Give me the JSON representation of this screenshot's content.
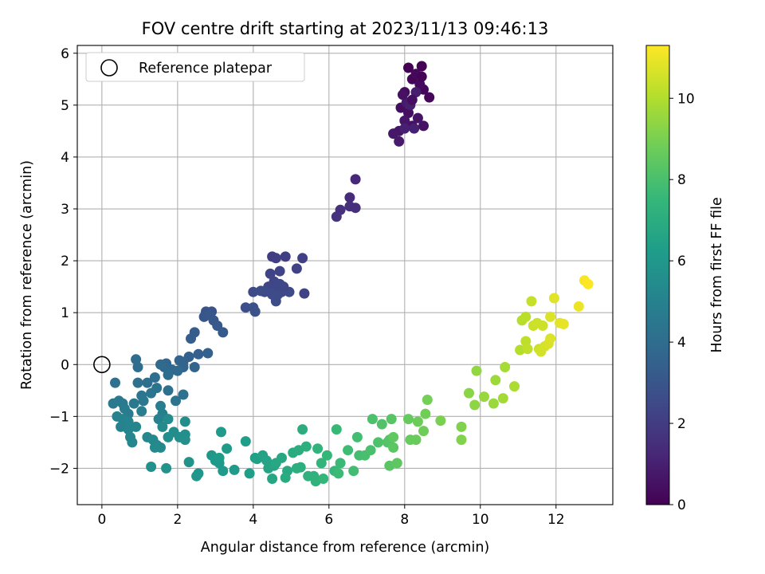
{
  "chart_data": {
    "type": "scatter",
    "title": "FOV centre drift starting at 2023/11/13 09:46:13",
    "xlabel": "Angular distance from reference (arcmin)",
    "ylabel": "Rotation from reference (arcmin)",
    "xlim": [
      -0.65,
      13.5
    ],
    "ylim": [
      -2.7,
      6.15
    ],
    "xticks": [
      0,
      2,
      4,
      6,
      8,
      10,
      12
    ],
    "yticks": [
      -2,
      -1,
      0,
      1,
      2,
      3,
      4,
      5,
      6
    ],
    "grid": true,
    "legend": {
      "position": "top-left",
      "entries": [
        "Reference platepar"
      ]
    },
    "reference_point": {
      "x": 0,
      "y": 0,
      "label": "Reference platepar"
    },
    "colorbar": {
      "label": "Hours from first FF file",
      "colormap": "viridis",
      "range": [
        0,
        11.3
      ],
      "ticks": [
        0,
        2,
        4,
        6,
        8,
        10
      ]
    },
    "series": [
      {
        "points": [
          [
            8.1,
            5.72
          ],
          [
            8.45,
            5.75
          ],
          [
            8.2,
            5.5
          ],
          [
            8.5,
            5.3
          ],
          [
            8.65,
            5.15
          ],
          [
            8.3,
            5.6
          ],
          [
            8.4,
            5.4
          ],
          [
            8.0,
            5.25
          ],
          [
            7.9,
            4.95
          ],
          [
            8.1,
            4.85
          ],
          [
            8.2,
            4.6
          ],
          [
            8.5,
            4.6
          ],
          [
            8.35,
            4.75
          ],
          [
            8.0,
            4.7
          ],
          [
            7.85,
            4.5
          ],
          [
            7.7,
            4.45
          ],
          [
            7.85,
            4.3
          ],
          [
            8.05,
            5.05
          ],
          [
            8.3,
            5.25
          ],
          [
            8.15,
            5.0
          ],
          [
            8.0,
            4.55
          ],
          [
            8.25,
            4.55
          ],
          [
            8.45,
            5.55
          ],
          [
            8.2,
            5.1
          ],
          [
            7.95,
            5.2
          ]
        ],
        "hours": [
          0.0,
          0.05,
          0.1,
          0.15,
          0.2,
          0.25,
          0.3,
          0.35,
          0.4,
          0.45,
          0.5,
          0.55,
          0.6,
          0.65,
          0.7,
          0.75,
          0.8,
          0.85,
          0.9,
          0.95,
          1.0,
          1.02,
          0.12,
          0.42,
          0.5
        ]
      },
      {
        "points": [
          [
            6.7,
            3.57
          ],
          [
            6.55,
            3.22
          ],
          [
            6.7,
            3.02
          ],
          [
            6.55,
            3.05
          ],
          [
            6.3,
            2.98
          ],
          [
            6.2,
            2.85
          ],
          [
            4.5,
            2.08
          ],
          [
            4.6,
            2.05
          ],
          [
            4.85,
            2.08
          ],
          [
            5.3,
            2.05
          ],
          [
            5.15,
            1.85
          ],
          [
            4.7,
            1.8
          ],
          [
            4.45,
            1.75
          ],
          [
            4.55,
            1.6
          ],
          [
            4.4,
            1.5
          ],
          [
            4.6,
            1.45
          ],
          [
            4.75,
            1.4
          ],
          [
            4.95,
            1.4
          ],
          [
            4.2,
            1.42
          ],
          [
            4.0,
            1.4
          ],
          [
            4.7,
            1.55
          ],
          [
            4.65,
            1.35
          ],
          [
            4.6,
            1.22
          ],
          [
            5.35,
            1.37
          ],
          [
            3.8,
            1.1
          ],
          [
            4.0,
            1.1
          ],
          [
            4.05,
            1.02
          ],
          [
            4.5,
            1.35
          ],
          [
            4.3,
            1.4
          ],
          [
            4.8,
            1.5
          ]
        ],
        "hours": [
          1.3,
          1.4,
          1.5,
          1.55,
          1.6,
          1.65,
          2.0,
          2.05,
          2.1,
          2.15,
          2.2,
          2.25,
          2.3,
          2.35,
          2.4,
          2.45,
          2.5,
          2.5,
          2.55,
          2.6,
          2.45,
          2.55,
          2.6,
          2.3,
          2.7,
          2.75,
          2.8,
          2.5,
          2.6,
          2.4
        ]
      },
      {
        "points": [
          [
            2.9,
            1.02
          ],
          [
            2.75,
            1.02
          ],
          [
            2.7,
            0.92
          ],
          [
            2.85,
            0.95
          ],
          [
            2.95,
            0.85
          ],
          [
            3.05,
            0.75
          ],
          [
            3.2,
            0.62
          ],
          [
            2.45,
            0.62
          ],
          [
            2.35,
            0.5
          ],
          [
            2.55,
            0.2
          ],
          [
            2.3,
            0.15
          ],
          [
            2.8,
            0.22
          ],
          [
            2.15,
            0.05
          ],
          [
            2.45,
            -0.05
          ],
          [
            2.05,
            0.08
          ],
          [
            2.15,
            -0.05
          ],
          [
            1.7,
            0.02
          ],
          [
            1.65,
            -0.05
          ],
          [
            1.85,
            -0.1
          ],
          [
            2.0,
            -0.12
          ],
          [
            1.55,
            0.0
          ],
          [
            0.9,
            0.1
          ],
          [
            0.95,
            -0.05
          ],
          [
            1.75,
            -0.2
          ],
          [
            1.4,
            -0.25
          ],
          [
            1.2,
            -0.35
          ],
          [
            0.95,
            -0.35
          ],
          [
            0.35,
            -0.35
          ],
          [
            1.75,
            -0.5
          ],
          [
            2.15,
            -0.58
          ],
          [
            1.95,
            -0.7
          ],
          [
            1.45,
            -0.45
          ],
          [
            1.3,
            -0.55
          ],
          [
            1.05,
            -0.6
          ],
          [
            1.1,
            -0.7
          ],
          [
            0.85,
            -0.75
          ],
          [
            0.55,
            -0.75
          ],
          [
            0.3,
            -0.75
          ],
          [
            0.45,
            -0.7
          ],
          [
            0.6,
            -0.85
          ],
          [
            0.7,
            -0.95
          ],
          [
            1.05,
            -0.9
          ],
          [
            1.55,
            -0.8
          ],
          [
            1.6,
            -0.95
          ],
          [
            1.5,
            -1.05
          ],
          [
            0.4,
            -1.0
          ],
          [
            0.55,
            -1.05
          ],
          [
            0.5,
            -1.2
          ],
          [
            0.7,
            -1.1
          ]
        ],
        "hours": [
          2.9,
          2.95,
          3.0,
          3.05,
          3.1,
          3.15,
          3.2,
          3.3,
          3.35,
          3.4,
          3.45,
          3.5,
          3.55,
          3.6,
          3.6,
          3.65,
          3.7,
          3.75,
          3.8,
          3.85,
          3.9,
          3.95,
          4.0,
          4.0,
          4.05,
          4.1,
          4.15,
          4.2,
          4.2,
          4.25,
          4.3,
          4.35,
          4.4,
          4.45,
          4.5,
          4.55,
          4.6,
          4.6,
          4.65,
          4.7,
          4.75,
          4.8,
          4.85,
          4.9,
          4.95,
          5.0,
          5.0,
          5.05,
          5.1
        ]
      },
      {
        "points": [
          [
            0.7,
            -1.25
          ],
          [
            0.9,
            -1.2
          ],
          [
            0.75,
            -1.4
          ],
          [
            0.8,
            -1.5
          ],
          [
            1.2,
            -1.4
          ],
          [
            1.35,
            -1.45
          ],
          [
            1.45,
            -1.55
          ],
          [
            1.55,
            -1.6
          ],
          [
            1.4,
            -1.6
          ],
          [
            1.6,
            -1.2
          ],
          [
            1.75,
            -1.05
          ],
          [
            2.2,
            -1.1
          ],
          [
            1.9,
            -1.3
          ],
          [
            2.05,
            -1.4
          ],
          [
            2.2,
            -1.35
          ],
          [
            1.75,
            -1.4
          ],
          [
            2.2,
            -1.45
          ],
          [
            1.3,
            -1.97
          ],
          [
            1.7,
            -2.0
          ],
          [
            2.3,
            -1.88
          ],
          [
            2.55,
            -2.1
          ],
          [
            2.5,
            -2.15
          ],
          [
            2.9,
            -1.75
          ],
          [
            3.0,
            -1.85
          ],
          [
            3.1,
            -1.9
          ],
          [
            3.2,
            -2.05
          ],
          [
            3.15,
            -1.3
          ],
          [
            3.3,
            -1.62
          ],
          [
            3.5,
            -2.03
          ],
          [
            3.1,
            -1.8
          ],
          [
            3.8,
            -1.48
          ],
          [
            3.9,
            -2.1
          ],
          [
            4.05,
            -1.8
          ],
          [
            4.1,
            -1.82
          ],
          [
            4.25,
            -1.75
          ],
          [
            4.35,
            -1.85
          ],
          [
            4.4,
            -2.0
          ],
          [
            4.55,
            -1.95
          ],
          [
            4.5,
            -2.2
          ],
          [
            4.6,
            -1.9
          ],
          [
            4.75,
            -1.8
          ],
          [
            4.9,
            -2.05
          ],
          [
            4.85,
            -2.18
          ],
          [
            5.05,
            -1.7
          ],
          [
            5.2,
            -1.65
          ],
          [
            5.3,
            -1.25
          ],
          [
            5.15,
            -2.0
          ],
          [
            5.25,
            -1.98
          ],
          [
            5.4,
            -1.58
          ],
          [
            5.45,
            -2.15
          ],
          [
            5.6,
            -2.15
          ],
          [
            5.65,
            -2.25
          ],
          [
            5.7,
            -1.62
          ],
          [
            5.8,
            -1.9
          ],
          [
            5.85,
            -2.2
          ],
          [
            5.95,
            -1.75
          ],
          [
            6.15,
            -2.05
          ],
          [
            6.2,
            -1.25
          ],
          [
            6.3,
            -1.9
          ],
          [
            6.25,
            -2.1
          ],
          [
            6.5,
            -1.65
          ],
          [
            6.65,
            -2.05
          ],
          [
            6.75,
            -1.4
          ],
          [
            6.8,
            -1.75
          ],
          [
            6.95,
            -1.75
          ],
          [
            7.1,
            -1.65
          ],
          [
            7.15,
            -1.05
          ],
          [
            7.3,
            -1.5
          ]
        ],
        "hours": [
          5.1,
          5.15,
          5.2,
          5.2,
          5.25,
          5.3,
          5.3,
          5.35,
          5.4,
          5.4,
          5.45,
          5.5,
          5.5,
          5.55,
          5.6,
          5.6,
          5.65,
          5.7,
          5.75,
          5.8,
          5.85,
          5.9,
          5.95,
          6.0,
          6.05,
          6.1,
          6.1,
          6.15,
          6.2,
          6.2,
          6.3,
          6.35,
          6.4,
          6.45,
          6.5,
          6.55,
          6.6,
          6.65,
          6.7,
          6.75,
          6.8,
          6.85,
          6.9,
          6.95,
          7.0,
          7.05,
          7.1,
          7.1,
          7.15,
          7.2,
          7.25,
          7.3,
          7.35,
          7.4,
          7.45,
          7.5,
          7.55,
          7.6,
          7.65,
          7.7,
          7.75,
          7.8,
          7.85,
          7.9,
          7.95,
          8.0,
          8.05,
          8.1
        ]
      },
      {
        "points": [
          [
            7.4,
            -1.15
          ],
          [
            7.55,
            -1.5
          ],
          [
            7.6,
            -1.45
          ],
          [
            7.65,
            -1.05
          ],
          [
            7.6,
            -1.95
          ],
          [
            7.7,
            -1.6
          ],
          [
            7.8,
            -1.9
          ],
          [
            7.7,
            -1.4
          ],
          [
            8.1,
            -1.05
          ],
          [
            8.15,
            -1.45
          ],
          [
            8.3,
            -1.45
          ],
          [
            8.35,
            -1.1
          ],
          [
            8.5,
            -1.28
          ],
          [
            8.55,
            -0.95
          ],
          [
            8.6,
            -0.68
          ],
          [
            8.95,
            -1.08
          ],
          [
            9.5,
            -1.2
          ],
          [
            9.5,
            -1.45
          ],
          [
            9.7,
            -0.55
          ],
          [
            9.85,
            -0.78
          ],
          [
            9.9,
            -0.12
          ],
          [
            10.1,
            -0.62
          ],
          [
            10.35,
            -0.75
          ],
          [
            10.4,
            -0.3
          ],
          [
            10.6,
            -0.65
          ],
          [
            10.65,
            -0.05
          ],
          [
            10.9,
            -0.42
          ]
        ],
        "hours": [
          8.15,
          8.2,
          8.25,
          8.3,
          8.35,
          8.4,
          8.45,
          8.5,
          8.6,
          8.65,
          8.7,
          8.75,
          8.8,
          8.85,
          8.9,
          9.0,
          9.1,
          9.15,
          9.3,
          9.35,
          9.45,
          9.55,
          9.6,
          9.65,
          9.75,
          9.8,
          9.9
        ]
      },
      {
        "points": [
          [
            11.05,
            0.28
          ],
          [
            11.1,
            0.85
          ],
          [
            11.2,
            0.92
          ],
          [
            11.2,
            0.45
          ],
          [
            11.25,
            0.3
          ],
          [
            11.35,
            1.22
          ],
          [
            11.4,
            0.75
          ],
          [
            11.5,
            0.8
          ],
          [
            11.55,
            0.3
          ],
          [
            11.6,
            0.25
          ],
          [
            11.7,
            0.35
          ],
          [
            11.8,
            0.4
          ],
          [
            11.85,
            0.5
          ],
          [
            11.85,
            0.92
          ],
          [
            11.95,
            1.28
          ],
          [
            12.1,
            0.8
          ],
          [
            12.2,
            0.78
          ],
          [
            12.6,
            1.12
          ],
          [
            12.75,
            1.62
          ],
          [
            12.85,
            1.55
          ],
          [
            11.65,
            0.75
          ]
        ],
        "hours": [
          10.05,
          10.1,
          10.15,
          10.2,
          10.25,
          10.35,
          10.4,
          10.45,
          10.5,
          10.55,
          10.6,
          10.65,
          10.7,
          10.7,
          10.8,
          10.85,
          10.9,
          11.0,
          11.2,
          11.3,
          10.5
        ]
      }
    ]
  }
}
